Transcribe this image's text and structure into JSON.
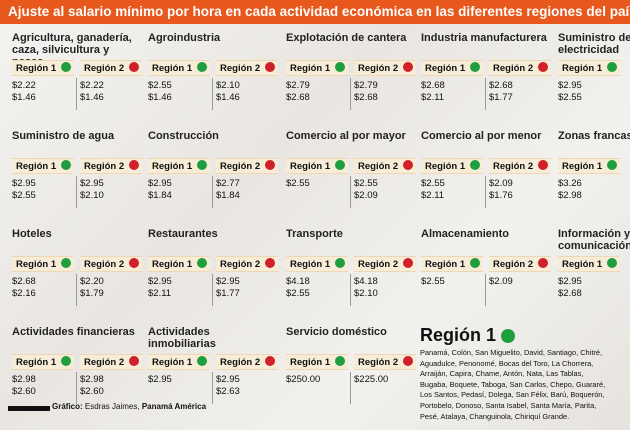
{
  "header": {
    "title": "Ajuste al salario mínimo por hora en cada actividad económica en las diferentes regiones del país"
  },
  "sections": [
    {
      "title": "Agricultura, ganadería, caza, silvicultura y pesca",
      "regions": [
        {
          "label": "Región 1",
          "color": "#1e9e3e",
          "values": [
            "$2.22",
            "$1.46"
          ]
        },
        {
          "label": "Región 2",
          "color": "#d0202a",
          "values": [
            "$2.22",
            "$1.46"
          ]
        }
      ]
    },
    {
      "title": "Agroindustria",
      "regions": [
        {
          "label": "Región 1",
          "color": "#1e9e3e",
          "values": [
            "$2.55",
            "$1.46"
          ]
        },
        {
          "label": "Región 2",
          "color": "#d0202a",
          "values": [
            "$2.10",
            "$1.46"
          ]
        }
      ]
    },
    {
      "title": "Explotación de cantera",
      "regions": [
        {
          "label": "Región 1",
          "color": "#1e9e3e",
          "values": [
            "$2.79",
            "$2.68"
          ]
        },
        {
          "label": "Región 2",
          "color": "#d0202a",
          "values": [
            "$2.79",
            "$2.68"
          ]
        }
      ]
    },
    {
      "title": "Industria manufacturera",
      "regions": [
        {
          "label": "Región 1",
          "color": "#1e9e3e",
          "values": [
            "$2.68",
            "$2.11"
          ]
        },
        {
          "label": "Región 2",
          "color": "#d0202a",
          "values": [
            "$2.68",
            "$1.77"
          ]
        }
      ]
    },
    {
      "title": "Suministro de electricidad",
      "regions": [
        {
          "label": "Región 1",
          "color": "#1e9e3e",
          "values": [
            "$2.95",
            "$2.55"
          ]
        }
      ]
    },
    {
      "title": "Suministro de agua",
      "regions": [
        {
          "label": "Región 1",
          "color": "#1e9e3e",
          "values": [
            "$2.95",
            "$2.55"
          ]
        },
        {
          "label": "Región 2",
          "color": "#d0202a",
          "values": [
            "$2.95",
            "$2.10"
          ]
        }
      ]
    },
    {
      "title": "Construcción",
      "regions": [
        {
          "label": "Región 1",
          "color": "#1e9e3e",
          "values": [
            "$2.95",
            "$1.84"
          ]
        },
        {
          "label": "Región 2",
          "color": "#d0202a",
          "values": [
            "$2.77",
            "$1.84"
          ]
        }
      ]
    },
    {
      "title": "Comercio al por mayor",
      "regions": [
        {
          "label": "Región 1",
          "color": "#1e9e3e",
          "values": [
            "$2.55"
          ]
        },
        {
          "label": "Región 2",
          "color": "#d0202a",
          "values": [
            "$2.55",
            "$2.09"
          ]
        }
      ]
    },
    {
      "title": "Comercio al por menor",
      "regions": [
        {
          "label": "Región 1",
          "color": "#1e9e3e",
          "values": [
            "$2.55",
            "$2.11"
          ]
        },
        {
          "label": "Región 2",
          "color": "#d0202a",
          "values": [
            "$2.09",
            "$1.76"
          ]
        }
      ]
    },
    {
      "title": "Zonas francas",
      "regions": [
        {
          "label": "Región 1",
          "color": "#1e9e3e",
          "values": [
            "$3.26",
            "$2.98"
          ]
        }
      ]
    },
    {
      "title": "Hoteles",
      "regions": [
        {
          "label": "Región 1",
          "color": "#1e9e3e",
          "values": [
            "$2.68",
            "$2.16"
          ]
        },
        {
          "label": "Región 2",
          "color": "#d0202a",
          "values": [
            "$2.20",
            "$1.79"
          ]
        }
      ]
    },
    {
      "title": "Restaurantes",
      "regions": [
        {
          "label": "Región 1",
          "color": "#1e9e3e",
          "values": [
            "$2.95",
            "$2.11"
          ]
        },
        {
          "label": "Región 2",
          "color": "#d0202a",
          "values": [
            "$2.95",
            "$1.77"
          ]
        }
      ]
    },
    {
      "title": "Transporte",
      "regions": [
        {
          "label": "Región 1",
          "color": "#1e9e3e",
          "values": [
            "$4.18",
            "$2.55"
          ]
        },
        {
          "label": "Región 2",
          "color": "#d0202a",
          "values": [
            "$4.18",
            "$2.10"
          ]
        }
      ]
    },
    {
      "title": "Almacenamiento",
      "regions": [
        {
          "label": "Región 1",
          "color": "#1e9e3e",
          "values": [
            "$2.55"
          ]
        },
        {
          "label": "Región 2",
          "color": "#d0202a",
          "values": [
            "$2.09"
          ]
        }
      ]
    },
    {
      "title": "Información y comunicación",
      "regions": [
        {
          "label": "Región 1",
          "color": "#1e9e3e",
          "values": [
            "$2.95",
            "$2.68"
          ]
        }
      ]
    },
    {
      "title": "Actividades financieras",
      "regions": [
        {
          "label": "Región 1",
          "color": "#1e9e3e",
          "values": [
            "$2.98",
            "$2.60"
          ]
        },
        {
          "label": "Región 2",
          "color": "#d0202a",
          "values": [
            "$2.98",
            "$2.60"
          ]
        }
      ]
    },
    {
      "title": "Actividades inmobiliarias",
      "regions": [
        {
          "label": "Región 1",
          "color": "#1e9e3e",
          "values": [
            "$2.95"
          ]
        },
        {
          "label": "Región 2",
          "color": "#d0202a",
          "values": [
            "$2.95",
            "$2.63"
          ]
        }
      ]
    },
    {
      "title": "Servicio doméstico",
      "regions": [
        {
          "label": "Región 1",
          "color": "#1e9e3e",
          "values": [
            "$250.00"
          ]
        },
        {
          "label": "Región 2",
          "color": "#d0202a",
          "values": [
            "$225.00"
          ]
        }
      ]
    }
  ],
  "legend": {
    "label": "Región 1",
    "color": "#1e9e3e",
    "towns": "Panamá, Colón, San Miguelito, David, Santiago, Chitré, Aguadulce, Penonomé, Bocas del Toro, La Chorrera, Arraiján, Capira, Chame, Antón, Nata, Las Tablas, Bugaba, Boquete, Taboga, San Carlos, Chepo, Guararé, Los Santos, Pedasí, Dolega, San Félix, Barú, Boquerón, Portobelo, Donoso, Santa Isabel, Santa María, Parita, Pesé, Atalaya, Changuinola, Chiriquí Grande."
  },
  "credit": {
    "label": "Gráfico:",
    "author": "Esdras Jaimes,",
    "outlet": "Panamá América"
  }
}
